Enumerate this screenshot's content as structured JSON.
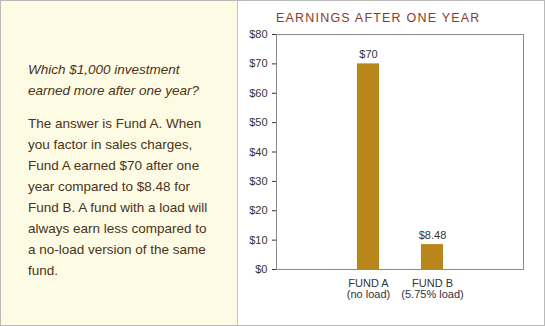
{
  "chart_data": {
    "type": "bar",
    "title": "EARNINGS AFTER ONE YEAR",
    "annotations": [
      "Which $1,000 investment earned more after one year?",
      "The answer is Fund A. When you factor in sales charges, Fund A earned $70 after one year compared to $8.48 for Fund B. A fund with a load will always earn less compared to a no-load version of the same fund."
    ],
    "categories": [
      "FUND A\n(no load)",
      "FUND B\n(5.75% load)"
    ],
    "values": [
      70,
      8.48
    ],
    "value_labels": [
      "$70",
      "$8.48"
    ],
    "data_labels": true,
    "color": "#b8861b",
    "ylim": [
      0,
      80
    ],
    "yticks": [
      {
        "value": 0,
        "label": "$0"
      },
      {
        "value": 10,
        "label": "$10"
      },
      {
        "value": 20,
        "label": "$20"
      },
      {
        "value": 30,
        "label": "$30"
      },
      {
        "value": 40,
        "label": "$40"
      },
      {
        "value": 50,
        "label": "$50"
      },
      {
        "value": 60,
        "label": "$60"
      },
      {
        "value": 70,
        "label": "$70"
      },
      {
        "value": 80,
        "label": "$80"
      }
    ],
    "grid": false
  }
}
